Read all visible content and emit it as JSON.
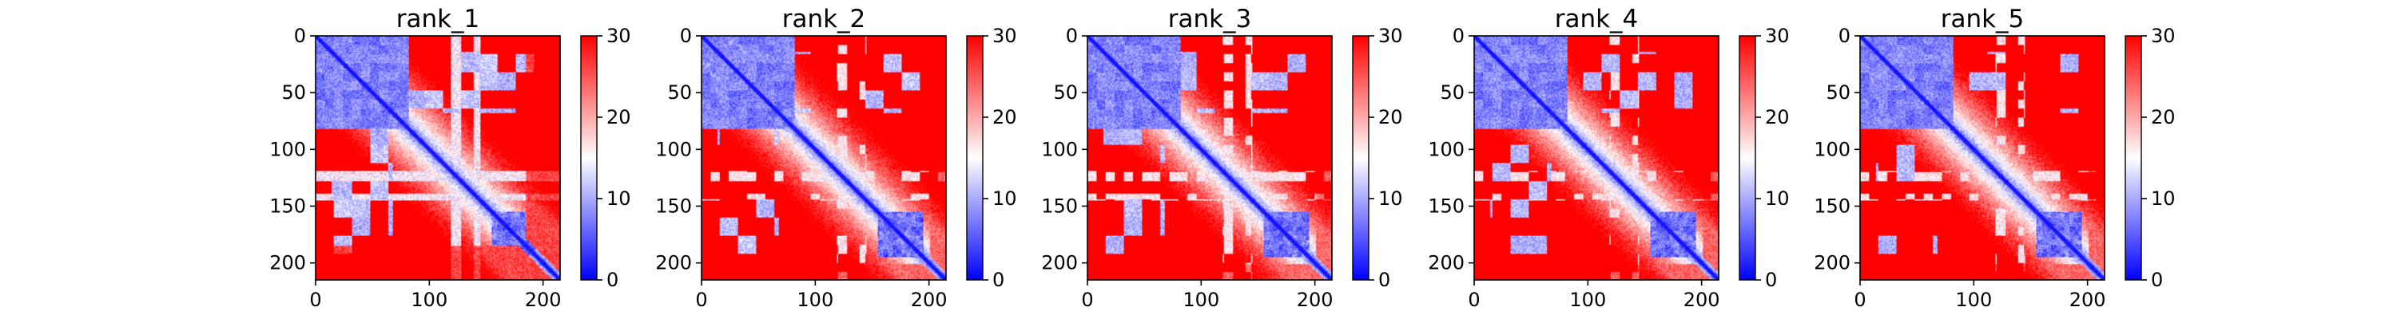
{
  "chart_data": [
    {
      "type": "heatmap",
      "title": "rank_1",
      "xlim": [
        0,
        215
      ],
      "ylim": [
        215,
        0
      ],
      "x_ticks": [
        "0",
        "100",
        "200"
      ],
      "y_ticks": [
        "0",
        "50",
        "100",
        "150",
        "200"
      ],
      "colorbar": {
        "min": 0,
        "max": 30,
        "ticks": [
          "0",
          "10",
          "20",
          "30"
        ],
        "colormap": "bwr"
      },
      "tail_start": 185
    },
    {
      "type": "heatmap",
      "title": "rank_2",
      "xlim": [
        0,
        215
      ],
      "ylim": [
        215,
        0
      ],
      "x_ticks": [
        "0",
        "100",
        "200"
      ],
      "y_ticks": [
        "0",
        "50",
        "100",
        "150",
        "200"
      ],
      "colorbar": {
        "min": 0,
        "max": 30,
        "ticks": [
          "0",
          "10",
          "20",
          "30"
        ],
        "colormap": "bwr"
      },
      "tail_start": null
    },
    {
      "type": "heatmap",
      "title": "rank_3",
      "xlim": [
        0,
        215
      ],
      "ylim": [
        215,
        0
      ],
      "x_ticks": [
        "0",
        "100",
        "200"
      ],
      "y_ticks": [
        "0",
        "50",
        "100",
        "150",
        "200"
      ],
      "colorbar": {
        "min": 0,
        "max": 30,
        "ticks": [
          "0",
          "10",
          "20",
          "30"
        ],
        "colormap": "bwr"
      },
      "tail_start": null
    },
    {
      "type": "heatmap",
      "title": "rank_4",
      "xlim": [
        0,
        215
      ],
      "ylim": [
        215,
        0
      ],
      "x_ticks": [
        "0",
        "100",
        "200"
      ],
      "y_ticks": [
        "0",
        "50",
        "100",
        "150",
        "200"
      ],
      "colorbar": {
        "min": 0,
        "max": 30,
        "ticks": [
          "0",
          "10",
          "20",
          "30"
        ],
        "colormap": "bwr"
      },
      "tail_start": null
    },
    {
      "type": "heatmap",
      "title": "rank_5",
      "xlim": [
        0,
        215
      ],
      "ylim": [
        215,
        0
      ],
      "x_ticks": [
        "0",
        "100",
        "200"
      ],
      "y_ticks": [
        "0",
        "50",
        "100",
        "150",
        "200"
      ],
      "colorbar": {
        "min": 0,
        "max": 30,
        "ticks": [
          "0",
          "10",
          "20",
          "30"
        ],
        "colormap": "bwr"
      },
      "tail_start": null
    }
  ],
  "colors": {
    "low": "#0000ff",
    "mid": "#ffffff",
    "high": "#ff0000",
    "axis": "#000000"
  }
}
